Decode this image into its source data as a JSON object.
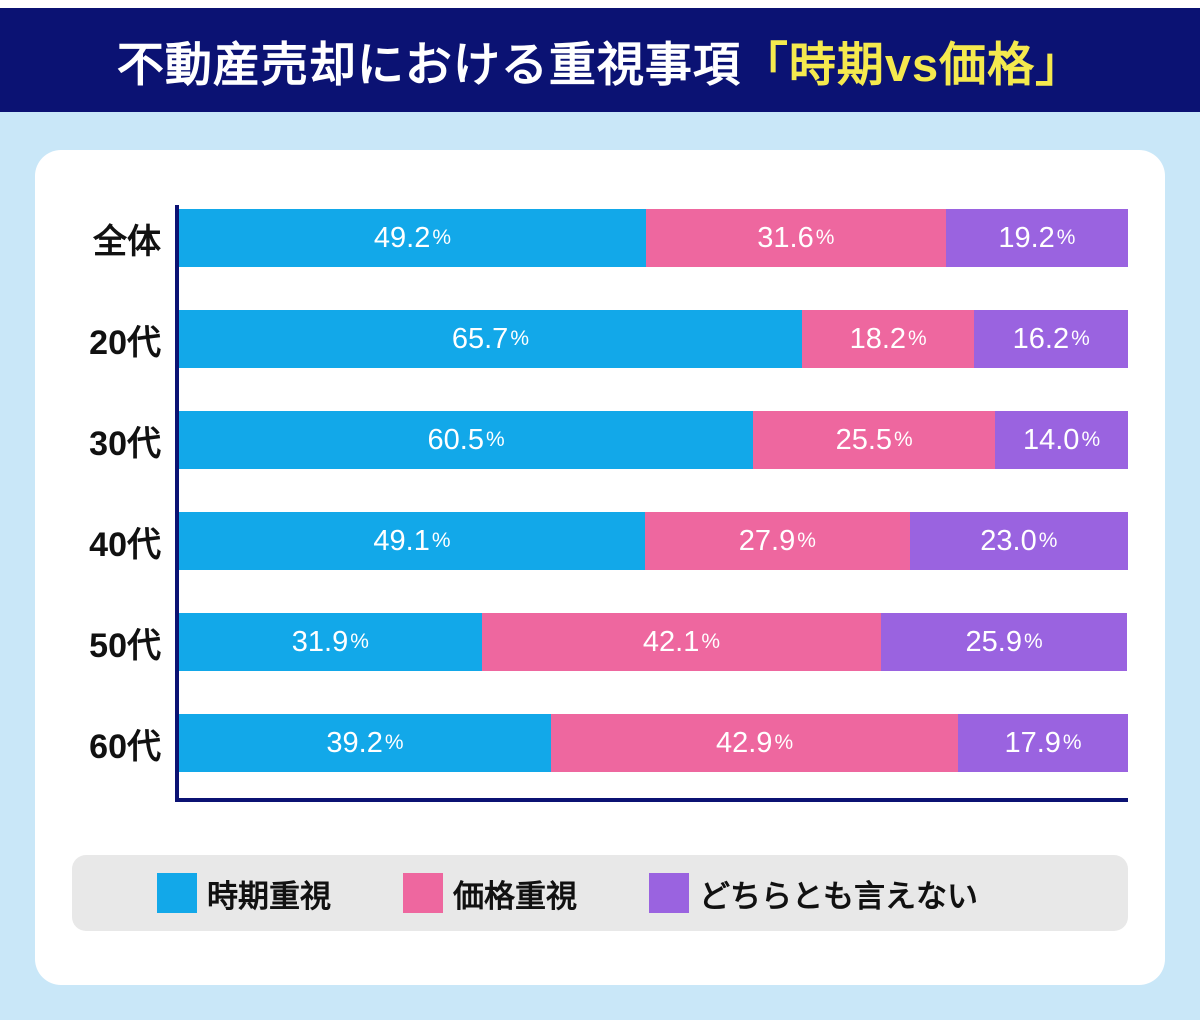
{
  "header": {
    "title_main": "不動産売却における重視事項",
    "title_highlight": "「時期vs価格」"
  },
  "chart_data": {
    "type": "bar",
    "orientation": "horizontal",
    "stacked": true,
    "unit": "%",
    "xlim": [
      0,
      100
    ],
    "legend_position": "bottom",
    "categories": [
      "全体",
      "20代",
      "30代",
      "40代",
      "50代",
      "60代"
    ],
    "series": [
      {
        "name": "時期重視",
        "color": "#12a8e9",
        "values": [
          49.2,
          65.7,
          60.5,
          49.1,
          31.9,
          39.2
        ]
      },
      {
        "name": "価格重視",
        "color": "#ee679f",
        "values": [
          31.6,
          18.2,
          25.5,
          27.9,
          42.1,
          42.9
        ]
      },
      {
        "name": "どちらとも言えない",
        "color": "#9a63e0",
        "values": [
          19.2,
          16.2,
          14.0,
          23.0,
          25.9,
          17.9
        ]
      }
    ],
    "rows": [
      {
        "cells": [
          "49.2",
          "31.6",
          "19.2"
        ]
      },
      {
        "cells": [
          "65.7",
          "18.2",
          "16.2"
        ]
      },
      {
        "cells": [
          "60.5",
          "25.5",
          "14.0"
        ]
      },
      {
        "cells": [
          "49.1",
          "27.9",
          "23.0"
        ]
      },
      {
        "cells": [
          "31.9",
          "42.1",
          "25.9"
        ]
      },
      {
        "cells": [
          "39.2",
          "42.9",
          "17.9"
        ]
      }
    ],
    "colors": {
      "header_navy": "#0b1273",
      "background_light_blue": "#c9e7f8",
      "card_white": "#ffffff",
      "title_yellow": "#f5e94e",
      "legend_gray": "#e8e8e8",
      "axis_navy": "#0b1273"
    }
  }
}
